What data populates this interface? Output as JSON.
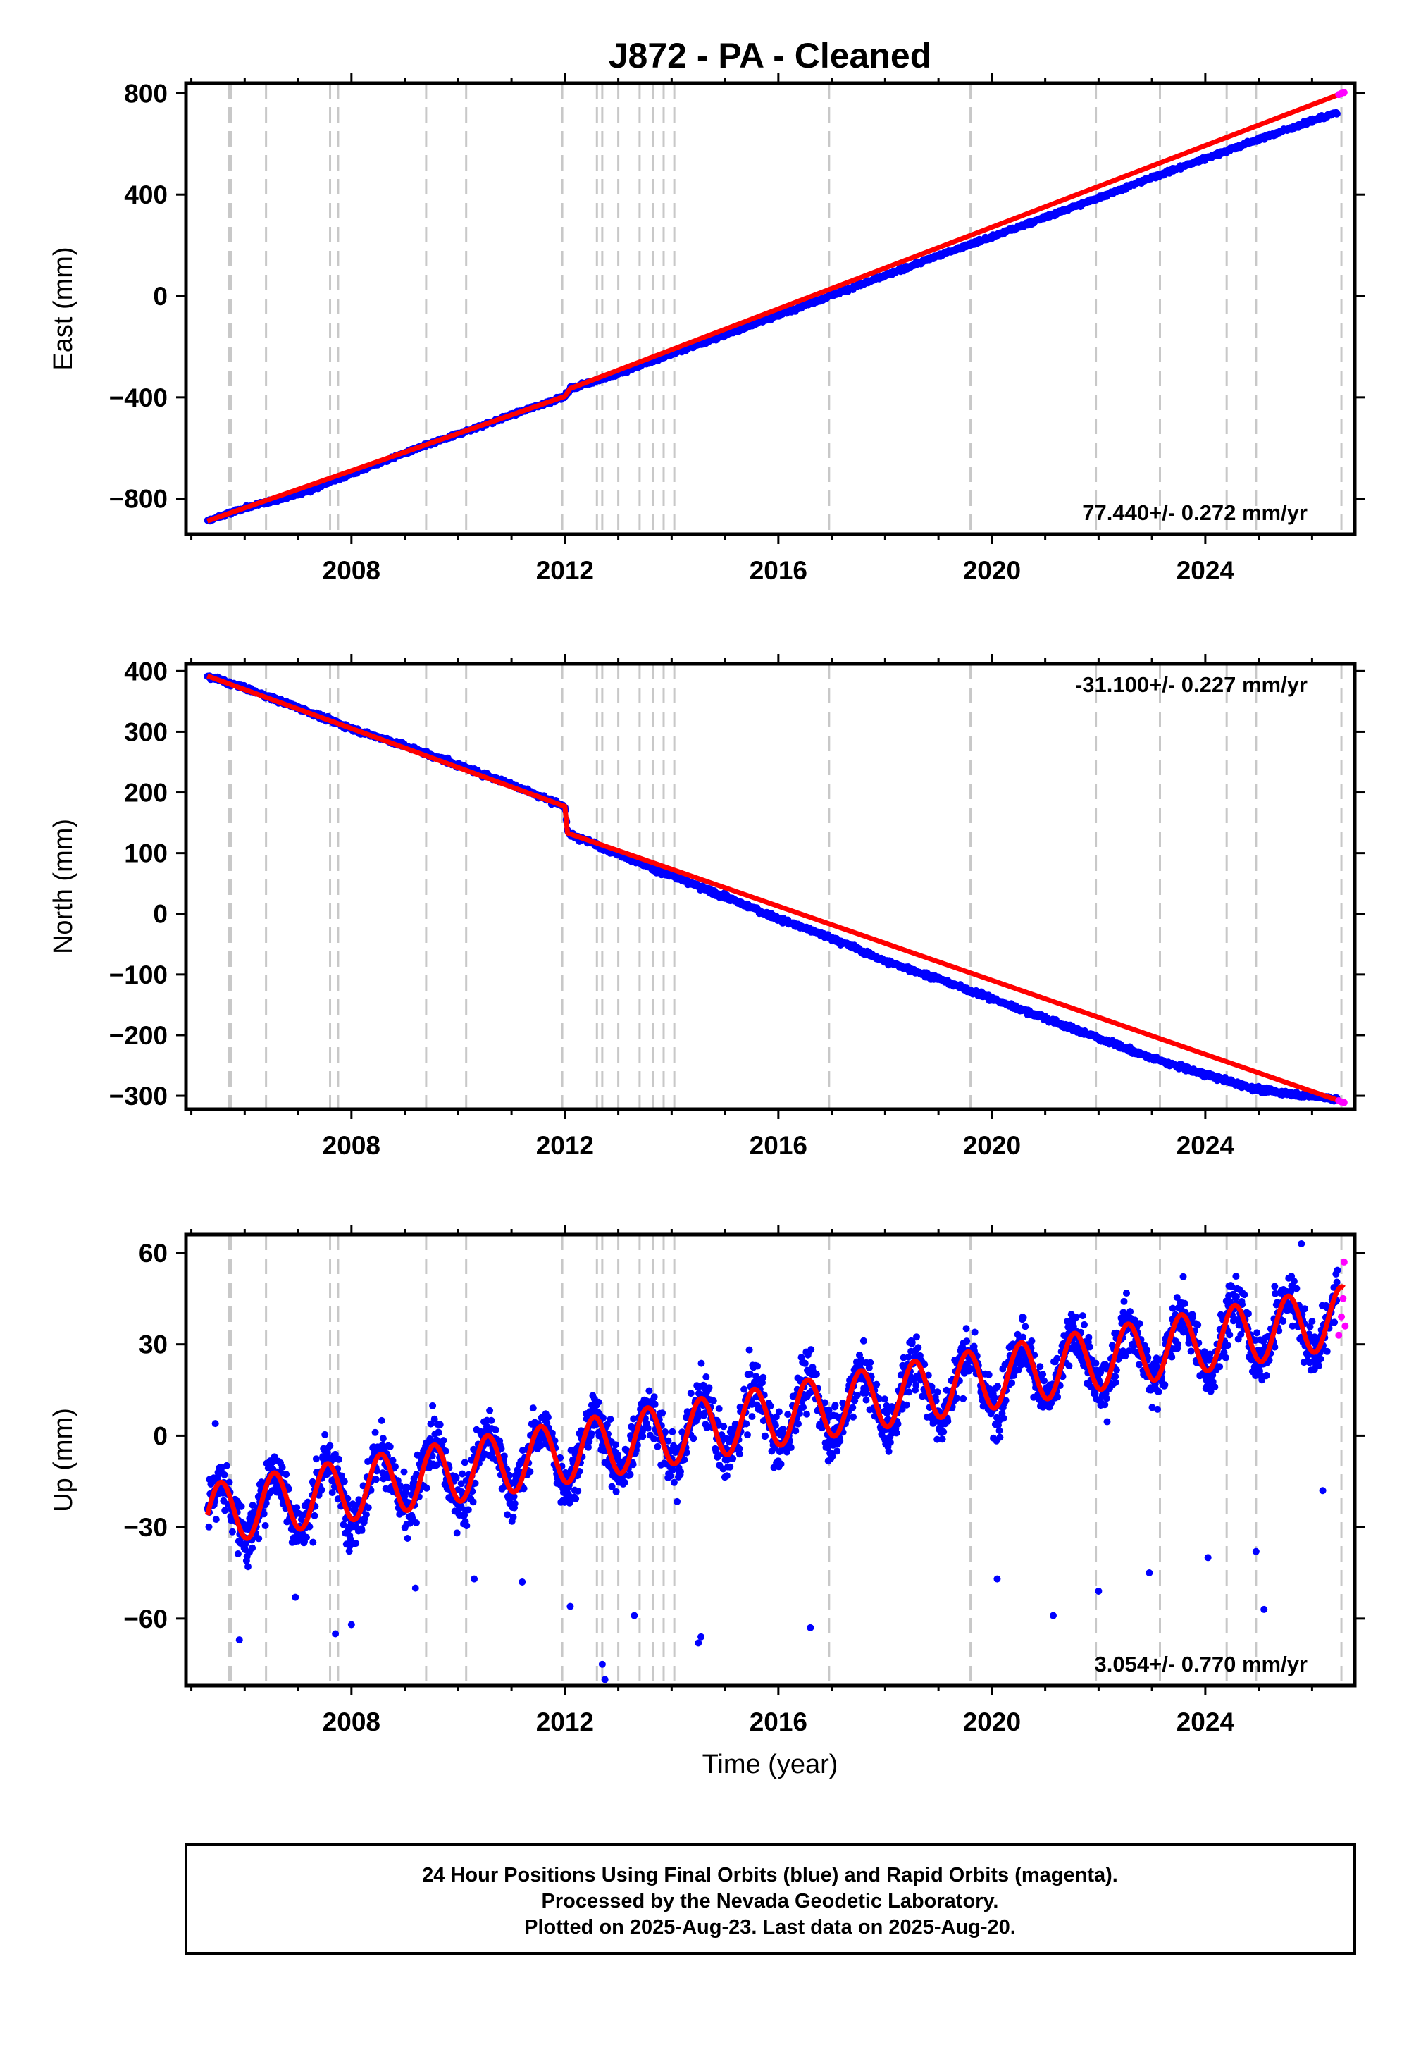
{
  "title": "J872  - PA - Cleaned",
  "colors": {
    "final_points": "#0000ff",
    "rapid_points": "#ff00ff",
    "model_line": "#ff0000",
    "event_lines": "#c8c8c8",
    "frame": "#000000"
  },
  "xlabel": "Time (year)",
  "x_ticks": [
    "2008",
    "2012",
    "2016",
    "2020",
    "2024"
  ],
  "x_range": [
    2004.9,
    2026.8
  ],
  "event_lines": [
    2005.7,
    2005.75,
    2006.4,
    2007.6,
    2007.75,
    2009.4,
    2010.15,
    2011.95,
    2012.6,
    2012.7,
    2013.0,
    2013.4,
    2013.65,
    2013.85,
    2014.05,
    2016.95,
    2019.6,
    2021.95,
    2023.15,
    2024.4,
    2024.95,
    2026.55
  ],
  "chart_data": [
    {
      "type": "scatter",
      "ylabel": "East (mm)",
      "ylim": [
        -940,
        840
      ],
      "yticks": [
        -800,
        -400,
        0,
        400,
        800
      ],
      "rate_label": "77.440+/- 0.272 mm/yr",
      "rate_position": "bottom-right",
      "series": [
        {
          "name": "Final Orbits",
          "x": [
            2005.3,
            2006.0,
            2007.0,
            2008.0,
            2009.0,
            2010.0,
            2011.0,
            2012.0,
            2012.1,
            2013.0,
            2014.0,
            2015.0,
            2016.0,
            2017.0,
            2018.0,
            2019.0,
            2020.0,
            2021.0,
            2022.0,
            2023.0,
            2024.0,
            2025.0,
            2026.4
          ],
          "y": [
            -888,
            -837,
            -783,
            -702,
            -620,
            -545,
            -470,
            -396,
            -365,
            -307,
            -229,
            -153,
            -75,
            3,
            80,
            160,
            233,
            310,
            388,
            467,
            543,
            619,
            720
          ]
        },
        {
          "name": "Rapid Orbits",
          "x": [
            2026.5,
            2026.55,
            2026.6
          ],
          "y": [
            795,
            800,
            803
          ]
        }
      ],
      "model": {
        "x": [
          2005.3,
          2012.0,
          2012.1,
          2026.6
        ],
        "y": [
          -888,
          -396,
          -365,
          803
        ]
      }
    },
    {
      "type": "scatter",
      "ylabel": "North (mm)",
      "ylim": [
        -322,
        412
      ],
      "yticks": [
        -300,
        -200,
        -100,
        0,
        100,
        200,
        300,
        400
      ],
      "rate_label": "-31.100+/- 0.227 mm/yr",
      "rate_position": "top-right",
      "series": [
        {
          "name": "Final Orbits",
          "x": [
            2005.3,
            2006.0,
            2007.0,
            2008.0,
            2009.0,
            2010.0,
            2011.0,
            2012.0,
            2012.05,
            2013.0,
            2014.0,
            2015.0,
            2016.0,
            2017.0,
            2018.0,
            2019.0,
            2020.0,
            2021.0,
            2022.0,
            2023.0,
            2024.0,
            2025.0,
            2026.4
          ],
          "y": [
            392,
            372,
            340,
            305,
            277,
            245,
            213,
            177,
            133,
            99,
            62,
            28,
            -8,
            -40,
            -78,
            -107,
            -140,
            -172,
            -205,
            -238,
            -265,
            -290,
            -305
          ]
        },
        {
          "name": "Rapid Orbits",
          "x": [
            2026.5,
            2026.55,
            2026.6
          ],
          "y": [
            -308,
            -310,
            -311
          ]
        }
      ],
      "model": {
        "x": [
          2005.3,
          2012.0,
          2012.05,
          2026.6
        ],
        "y": [
          392,
          177,
          133,
          -311
        ]
      }
    },
    {
      "type": "scatter",
      "ylabel": "Up (mm)",
      "ylim": [
        -82,
        66
      ],
      "yticks": [
        -60,
        -30,
        0,
        30,
        60
      ],
      "rate_label": "3.054+/- 0.770 mm/yr",
      "rate_position": "bottom-right",
      "series": [
        {
          "name": "Final Orbits",
          "x": [
            2005.3,
            2005.85,
            2006.6,
            2007.5,
            2008.6,
            2009.4,
            2010.6,
            2011.5,
            2012.6,
            2013.6,
            2014.6,
            2015.5,
            2016.5,
            2017.5,
            2018.6,
            2019.5,
            2020.5,
            2021.5,
            2022.5,
            2023.6,
            2024.5,
            2025.5,
            2026.5
          ],
          "y": [
            -18,
            -37,
            -13,
            -27,
            -5,
            -25,
            -8,
            -27,
            -6,
            -22,
            5,
            -14,
            10,
            -10,
            13,
            -4,
            22,
            5,
            29,
            13,
            33,
            20,
            37
          ],
          "outliers_x": [
            2005.45,
            2005.9,
            2006.95,
            2007.7,
            2008.0,
            2009.2,
            2010.3,
            2011.2,
            2012.1,
            2012.7,
            2012.75,
            2013.3,
            2014.5,
            2014.55,
            2016.6,
            2020.1,
            2021.15,
            2022.0,
            2022.95,
            2024.05,
            2024.95,
            2025.1,
            2025.3,
            2025.8,
            2026.2
          ],
          "outliers_y": [
            4,
            -67,
            -53,
            -65,
            -62,
            -50,
            -47,
            -48,
            -56,
            -75,
            -80,
            -59,
            -68,
            -66,
            -63,
            -47,
            -59,
            -51,
            -45,
            -40,
            -38,
            -57,
            49,
            63,
            -18
          ]
        },
        {
          "name": "Rapid Orbits",
          "x": [
            2026.5,
            2026.55,
            2026.58,
            2026.6,
            2026.62
          ],
          "y": [
            33,
            39,
            45,
            57,
            36
          ]
        }
      ],
      "model": {
        "type": "seasonal",
        "trend_start_x": 2005.3,
        "trend_start_y": -26,
        "rate": 3.054,
        "amplitude": 10,
        "phase_peak": 0.55
      }
    }
  ],
  "footer": {
    "line1": "24 Hour Positions Using Final Orbits (blue) and Rapid Orbits (magenta).",
    "line2": "Processed by the Nevada Geodetic Laboratory.",
    "line3": "Plotted on 2025-Aug-23. Last data on 2025-Aug-20."
  }
}
